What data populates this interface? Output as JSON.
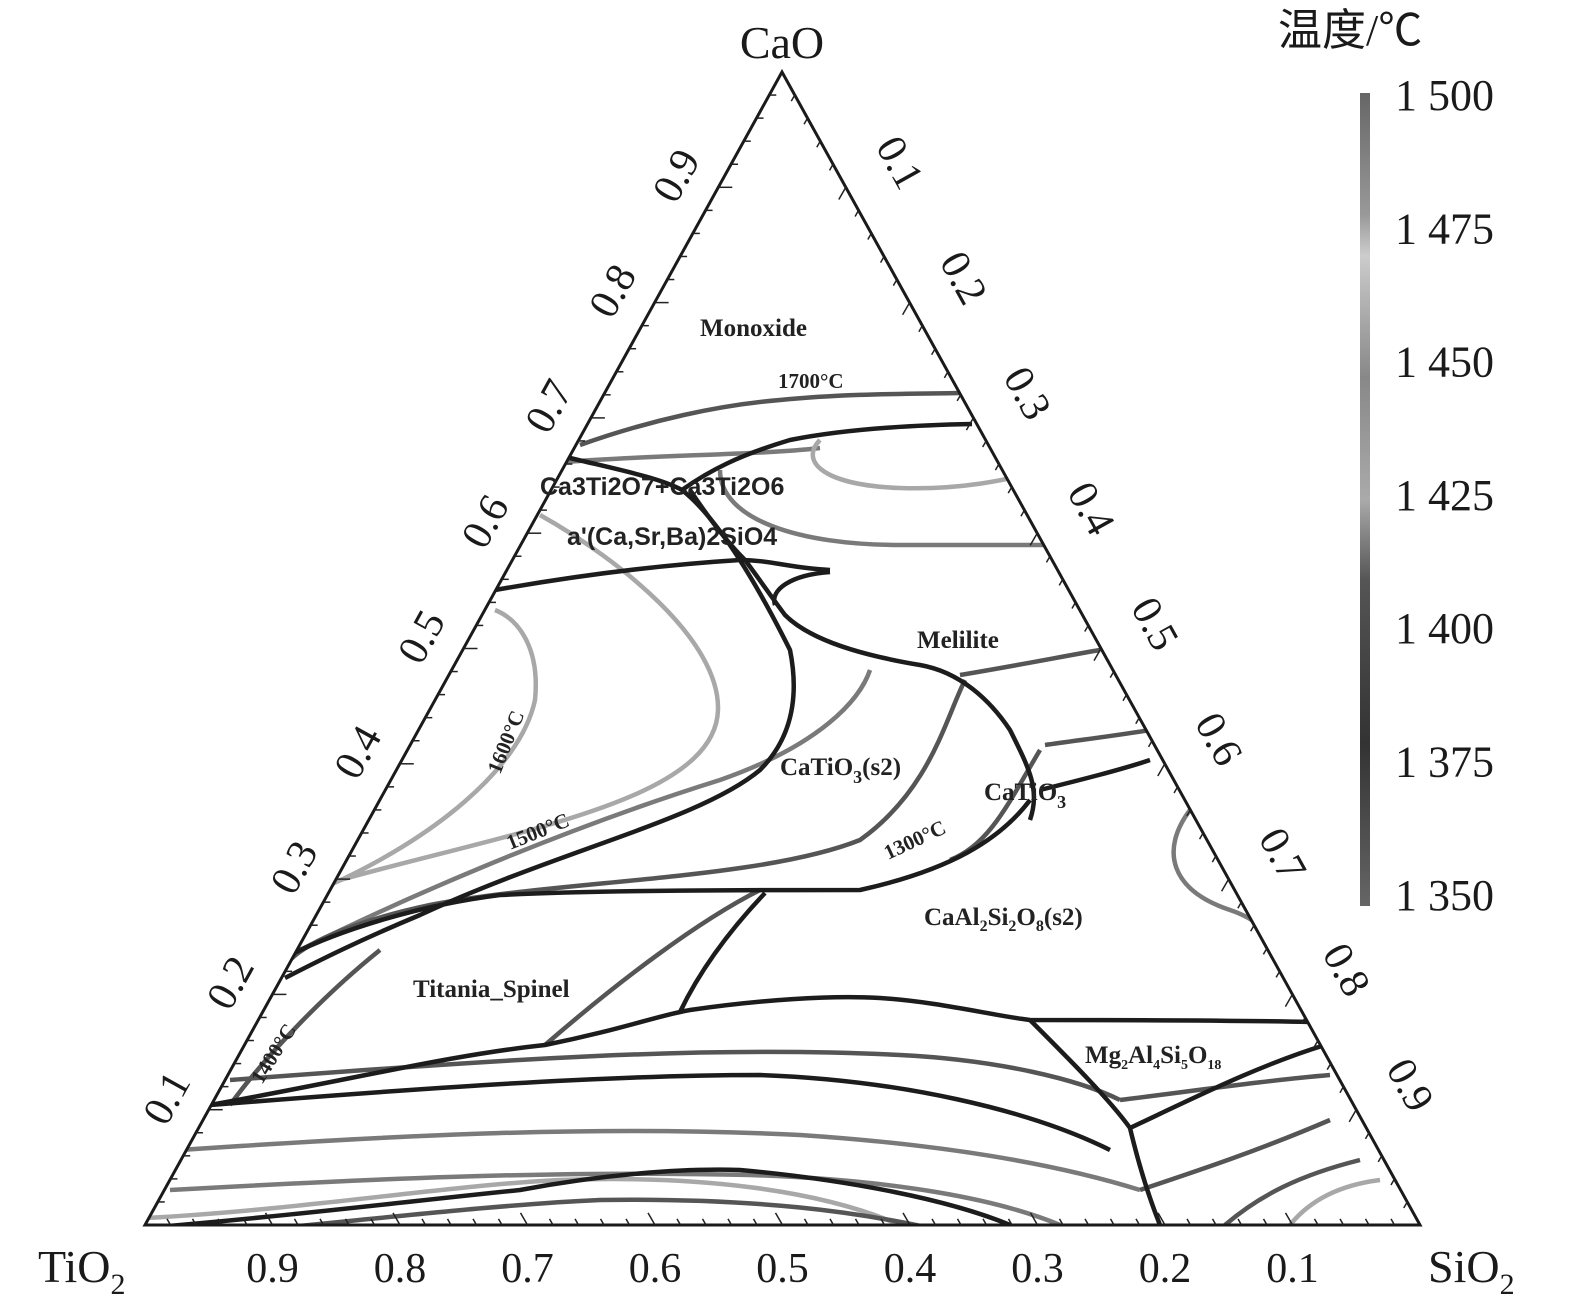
{
  "vertices": {
    "top": "CaO",
    "left": "TiO",
    "left_sub": "2",
    "right": "SiO",
    "right_sub": "2"
  },
  "left_axis_ticks": [
    "0.1",
    "0.2",
    "0.3",
    "0.4",
    "0.5",
    "0.6",
    "0.7",
    "0.8",
    "0.9"
  ],
  "right_axis_ticks": [
    "0.1",
    "0.2",
    "0.3",
    "0.4",
    "0.5",
    "0.6",
    "0.7",
    "0.8",
    "0.9"
  ],
  "bottom_axis_ticks": [
    "0.9",
    "0.8",
    "0.7",
    "0.6",
    "0.5",
    "0.4",
    "0.3",
    "0.2",
    "0.1"
  ],
  "colorbar": {
    "title": "温度/℃",
    "labels": [
      "1 500",
      "1 475",
      "1 450",
      "1 425",
      "1 400",
      "1 375",
      "1 350"
    ]
  },
  "phases": {
    "monoxide": "Monoxide",
    "ca3ti2o7": "Ca3Ti2O7+Ca3Ti2O6",
    "c2s": "a'(Ca,Sr,Ba)2SiO4",
    "melilite": "Melilite",
    "catio3_s2": "CaTiO",
    "catio3_s2_sub": "3",
    "catio3_s2_suffix": "(s2)",
    "catio3": "CaTiO",
    "catio3_sub": "3",
    "anorthite": [
      "CaAl",
      "2",
      "Si",
      "2",
      "O",
      "8",
      "(s2)"
    ],
    "spinel": "Titania_Spinel",
    "cordierite": [
      "Mg",
      "2",
      "Al",
      "4",
      "Si",
      "5",
      "O",
      "18"
    ]
  },
  "isotherms": {
    "t1700": "1700°C",
    "t1600": "1600°C",
    "t1500": "1500°C",
    "t1400": "1400°C",
    "t1300": "1300°C"
  },
  "colors": {
    "black": "#1c1c1c",
    "dark": "#555555",
    "mid": "#7a7a7a",
    "light": "#a8a8a8"
  }
}
